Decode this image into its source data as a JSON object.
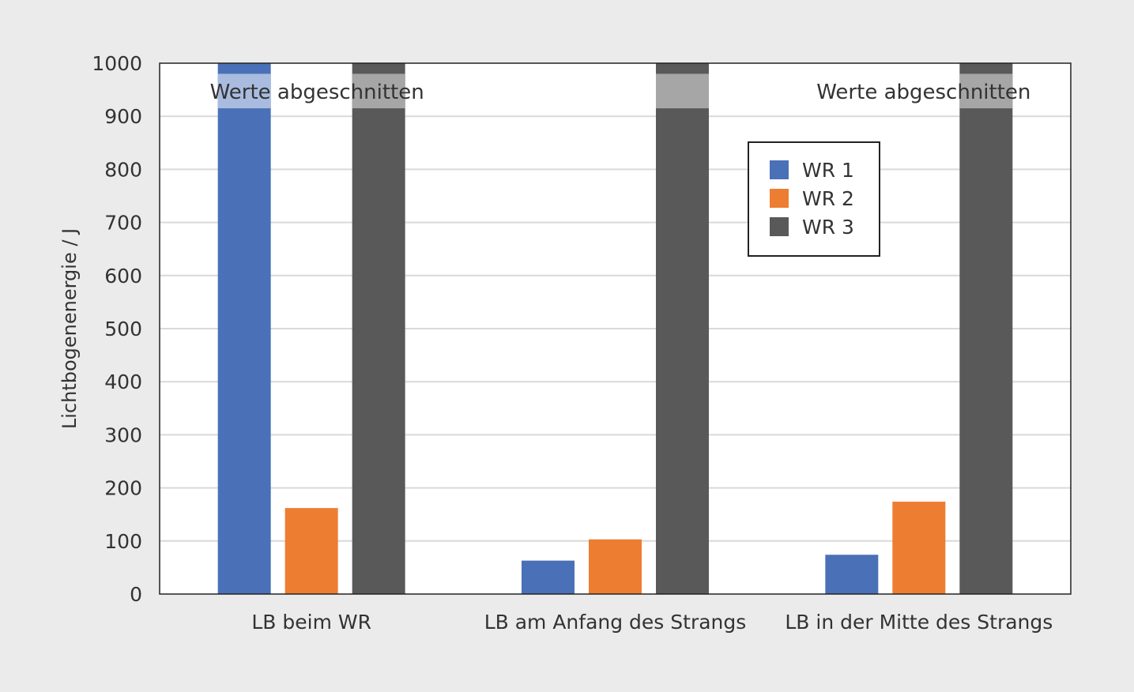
{
  "chart_data": {
    "type": "bar",
    "categories": [
      "LB beim WR",
      "LB am Anfang des Strangs",
      "LB in der Mitte des Strangs"
    ],
    "series": [
      {
        "name": "WR 1",
        "color": "#4a70b7",
        "values": [
          1000,
          63,
          74
        ],
        "clipped": [
          true,
          false,
          false
        ]
      },
      {
        "name": "WR 2",
        "color": "#ed7d31",
        "values": [
          162,
          103,
          174
        ],
        "clipped": [
          false,
          false,
          false
        ]
      },
      {
        "name": "WR 3",
        "color": "#595959",
        "values": [
          1000,
          1000,
          1000
        ],
        "clipped": [
          true,
          true,
          true
        ]
      }
    ],
    "ylabel": "Lichtbogenenergie / J",
    "xlabel": "",
    "ylim": [
      0,
      1000
    ],
    "yticks": [
      0,
      100,
      200,
      300,
      400,
      500,
      600,
      700,
      800,
      900,
      1000
    ],
    "grid": true,
    "legend_position": "top-right",
    "annotations": [
      {
        "text": "Werte abgeschnitten",
        "category": 0
      },
      {
        "text": "Werte abgeschnitten",
        "category": 2
      }
    ],
    "clip_band_color_light": "#a9bce0",
    "clip_band_color_gray": "#a6a6a6"
  }
}
